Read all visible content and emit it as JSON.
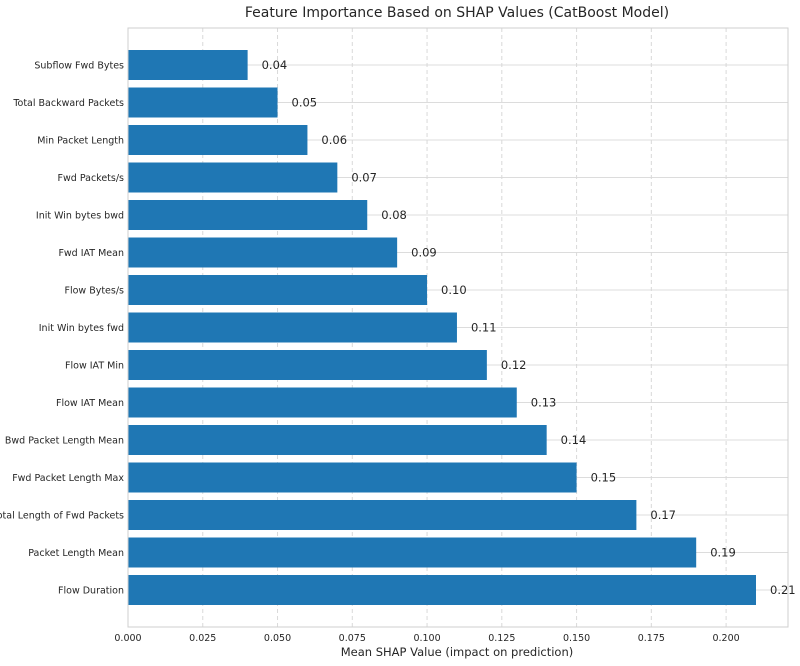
{
  "chart_data": {
    "type": "bar",
    "orientation": "horizontal",
    "title": "Feature Importance Based on SHAP Values (CatBoost Model)",
    "xlabel": "Mean SHAP Value (impact on prediction)",
    "ylabel": "",
    "xlim": [
      0,
      0.21
    ],
    "xticks": [
      "0.000",
      "0.025",
      "0.050",
      "0.075",
      "0.100",
      "0.125",
      "0.150",
      "0.175",
      "0.200"
    ],
    "grid": true,
    "bar_color": "#1f77b4",
    "categories": [
      "Subflow Fwd Bytes",
      "Total Backward Packets",
      "Min Packet Length",
      "Fwd Packets/s",
      "Init Win bytes bwd",
      "Fwd IAT Mean",
      "Flow Bytes/s",
      "Init Win bytes fwd",
      "Flow IAT Min",
      "Flow IAT Mean",
      "Bwd Packet Length Mean",
      "Fwd Packet Length Max",
      "Total Length of Fwd Packets",
      "Packet Length Mean",
      "Flow Duration"
    ],
    "values": [
      0.04,
      0.05,
      0.06,
      0.07,
      0.08,
      0.09,
      0.1,
      0.11,
      0.12,
      0.13,
      0.14,
      0.15,
      0.17,
      0.19,
      0.21
    ],
    "value_labels": [
      "0.04",
      "0.05",
      "0.06",
      "0.07",
      "0.08",
      "0.09",
      "0.10",
      "0.11",
      "0.12",
      "0.13",
      "0.14",
      "0.15",
      "0.17",
      "0.19",
      "0.21"
    ]
  }
}
